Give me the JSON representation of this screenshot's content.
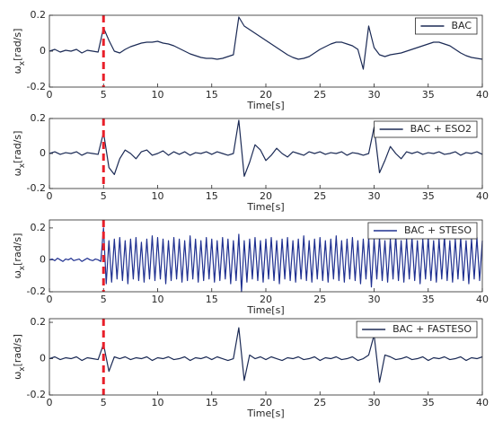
{
  "chart_data": [
    {
      "type": "line",
      "xlabel": "Time[s]",
      "ylabel": {
        "symbol": "ω",
        "sub": "x",
        "unit": "[rad/s]"
      },
      "xlim": [
        0,
        40
      ],
      "xticks": [
        0,
        5,
        10,
        15,
        20,
        25,
        30,
        35,
        40
      ],
      "ylim": [
        -0.2,
        0.2
      ],
      "yticks": [
        -0.2,
        0,
        0.2
      ],
      "grid": false,
      "legend": "upper right",
      "vline": {
        "x": 5,
        "color": "#e8202a"
      },
      "x": [
        0,
        0.5,
        1,
        1.5,
        2,
        2.5,
        3,
        3.5,
        4,
        4.5,
        5,
        5.5,
        6,
        6.5,
        7,
        7.5,
        8,
        8.5,
        9,
        9.5,
        10,
        10.5,
        11,
        11.5,
        12,
        12.5,
        13,
        13.5,
        14,
        14.5,
        15,
        15.5,
        16,
        16.5,
        17,
        17.5,
        18,
        18.5,
        19,
        19.5,
        20,
        20.5,
        21,
        21.5,
        22,
        22.5,
        23,
        23.5,
        24,
        24.5,
        25,
        25.5,
        26,
        26.5,
        27,
        27.5,
        28,
        28.5,
        29,
        29.5,
        30,
        30.5,
        31,
        31.5,
        32,
        32.5,
        33,
        33.5,
        34,
        34.5,
        35,
        35.5,
        36,
        36.5,
        37,
        37.5,
        38,
        38.5,
        39,
        39.5,
        40
      ],
      "series": [
        {
          "name": "BAC",
          "color": "#1b2a55",
          "values": [
            0.0,
            0.01,
            -0.005,
            0.005,
            0.0,
            0.01,
            -0.01,
            0.005,
            0.0,
            -0.005,
            0.13,
            0.06,
            0.0,
            -0.01,
            0.01,
            0.025,
            0.035,
            0.045,
            0.05,
            0.05,
            0.055,
            0.045,
            0.04,
            0.03,
            0.015,
            0.0,
            -0.015,
            -0.025,
            -0.035,
            -0.04,
            -0.04,
            -0.045,
            -0.04,
            -0.03,
            -0.02,
            0.19,
            0.14,
            0.12,
            0.1,
            0.08,
            0.06,
            0.04,
            0.02,
            0.0,
            -0.02,
            -0.035,
            -0.045,
            -0.04,
            -0.03,
            -0.01,
            0.01,
            0.025,
            0.04,
            0.05,
            0.05,
            0.04,
            0.03,
            0.01,
            -0.1,
            0.14,
            0.02,
            -0.02,
            -0.03,
            -0.02,
            -0.015,
            -0.01,
            0.0,
            0.01,
            0.02,
            0.03,
            0.04,
            0.05,
            0.05,
            0.04,
            0.03,
            0.01,
            -0.01,
            -0.025,
            -0.035,
            -0.04,
            -0.045
          ]
        }
      ]
    },
    {
      "type": "line",
      "xlabel": "Time[s]",
      "ylabel": {
        "symbol": "ω",
        "sub": "x",
        "unit": "[rad/s]"
      },
      "xlim": [
        0,
        40
      ],
      "xticks": [
        0,
        5,
        10,
        15,
        20,
        25,
        30,
        35,
        40
      ],
      "ylim": [
        -0.2,
        0.2
      ],
      "yticks": [
        -0.2,
        0,
        0.2
      ],
      "grid": false,
      "legend": "upper right",
      "vline": {
        "x": 5,
        "color": "#e8202a"
      },
      "x": [
        0,
        0.5,
        1,
        1.5,
        2,
        2.5,
        3,
        3.5,
        4,
        4.5,
        5,
        5.5,
        6,
        6.5,
        7,
        7.5,
        8,
        8.5,
        9,
        9.5,
        10,
        10.5,
        11,
        11.5,
        12,
        12.5,
        13,
        13.5,
        14,
        14.5,
        15,
        15.5,
        16,
        16.5,
        17,
        17.5,
        18,
        18.5,
        19,
        19.5,
        20,
        20.5,
        21,
        21.5,
        22,
        22.5,
        23,
        23.5,
        24,
        24.5,
        25,
        25.5,
        26,
        26.5,
        27,
        27.5,
        28,
        28.5,
        29,
        29.5,
        30,
        30.5,
        31,
        31.5,
        32,
        32.5,
        33,
        33.5,
        34,
        34.5,
        35,
        35.5,
        36,
        36.5,
        37,
        37.5,
        38,
        38.5,
        39,
        39.5,
        40
      ],
      "series": [
        {
          "name": "BAC + ESO2",
          "color": "#1b2a55",
          "values": [
            0.0,
            0.01,
            -0.005,
            0.005,
            0.0,
            0.01,
            -0.01,
            0.005,
            0.0,
            -0.005,
            0.12,
            -0.08,
            -0.12,
            -0.03,
            0.02,
            0.0,
            -0.03,
            0.01,
            0.02,
            -0.01,
            0.0,
            0.015,
            -0.01,
            0.01,
            -0.005,
            0.01,
            -0.01,
            0.005,
            0.0,
            0.01,
            -0.005,
            0.01,
            0.0,
            -0.01,
            0.0,
            0.19,
            -0.13,
            -0.05,
            0.05,
            0.02,
            -0.04,
            -0.01,
            0.03,
            0.0,
            -0.02,
            0.01,
            0.0,
            -0.01,
            0.01,
            0.0,
            0.01,
            -0.005,
            0.005,
            0.0,
            0.01,
            -0.01,
            0.005,
            0.0,
            -0.01,
            0.0,
            0.15,
            -0.11,
            -0.04,
            0.04,
            0.0,
            -0.03,
            0.01,
            0.0,
            0.01,
            -0.005,
            0.005,
            0.0,
            0.01,
            -0.005,
            0.0,
            0.01,
            -0.01,
            0.005,
            0.0,
            0.01,
            -0.005
          ]
        }
      ]
    },
    {
      "type": "line",
      "xlabel": "Time[s]",
      "ylabel": {
        "symbol": "ω",
        "sub": "x",
        "unit": "[rad/s]"
      },
      "xlim": [
        0,
        40
      ],
      "xticks": [
        0,
        5,
        10,
        15,
        20,
        25,
        30,
        35,
        40
      ],
      "ylim": [
        -0.2,
        0.25
      ],
      "yticks": [
        -0.2,
        0,
        0.2
      ],
      "grid": false,
      "legend": "upper right",
      "vline": {
        "x": 5,
        "color": "#e8202a"
      },
      "x": [
        0,
        0.25,
        0.5,
        0.75,
        1,
        1.25,
        1.5,
        1.75,
        2,
        2.25,
        2.5,
        2.75,
        3,
        3.25,
        3.5,
        3.75,
        4,
        4.25,
        4.5,
        4.75,
        5,
        5.25,
        5.5,
        5.75,
        6,
        6.25,
        6.5,
        6.75,
        7,
        7.25,
        7.5,
        7.75,
        8,
        8.25,
        8.5,
        8.75,
        9,
        9.25,
        9.5,
        9.75,
        10,
        10.25,
        10.5,
        10.75,
        11,
        11.25,
        11.5,
        11.75,
        12,
        12.25,
        12.5,
        12.75,
        13,
        13.25,
        13.5,
        13.75,
        14,
        14.25,
        14.5,
        14.75,
        15,
        15.25,
        15.5,
        15.75,
        16,
        16.25,
        16.5,
        16.75,
        17,
        17.25,
        17.5,
        17.75,
        18,
        18.25,
        18.5,
        18.75,
        19,
        19.25,
        19.5,
        19.75,
        20,
        20.25,
        20.5,
        20.75,
        21,
        21.25,
        21.5,
        21.75,
        22,
        22.25,
        22.5,
        22.75,
        23,
        23.25,
        23.5,
        23.75,
        24,
        24.25,
        24.5,
        24.75,
        25,
        25.25,
        25.5,
        25.75,
        26,
        26.25,
        26.5,
        26.75,
        27,
        27.25,
        27.5,
        27.75,
        28,
        28.25,
        28.5,
        28.75,
        29,
        29.25,
        29.5,
        29.75,
        30,
        30.25,
        30.5,
        30.75,
        31,
        31.25,
        31.5,
        31.75,
        32,
        32.25,
        32.5,
        32.75,
        33,
        33.25,
        33.5,
        33.75,
        34,
        34.25,
        34.5,
        34.75,
        35,
        35.25,
        35.5,
        35.75,
        36,
        36.25,
        36.5,
        36.75,
        37,
        37.25,
        37.5,
        37.75,
        38,
        38.25,
        38.5,
        38.75,
        39,
        39.25,
        39.5,
        39.75,
        40
      ],
      "series": [
        {
          "name": "BAC + STESO",
          "color": "#1f3090",
          "values": [
            0.0,
            0.005,
            -0.005,
            0.01,
            0.0,
            -0.01,
            0.005,
            0.0,
            0.01,
            -0.005,
            0.0,
            0.005,
            -0.01,
            0.0,
            0.01,
            0.0,
            -0.005,
            0.005,
            0.0,
            -0.01,
            0.2,
            -0.15,
            0.12,
            -0.14,
            0.13,
            -0.12,
            0.14,
            -0.13,
            0.12,
            -0.15,
            0.13,
            -0.12,
            0.14,
            -0.13,
            0.11,
            -0.14,
            0.13,
            -0.12,
            0.15,
            -0.13,
            0.14,
            -0.12,
            0.13,
            -0.15,
            0.12,
            -0.13,
            0.14,
            -0.12,
            0.13,
            -0.14,
            0.12,
            -0.13,
            0.15,
            -0.12,
            0.13,
            -0.14,
            0.12,
            -0.13,
            0.14,
            -0.12,
            0.13,
            -0.14,
            0.12,
            -0.13,
            0.14,
            -0.12,
            0.13,
            -0.15,
            0.12,
            -0.13,
            0.16,
            -0.2,
            0.12,
            -0.14,
            0.13,
            -0.12,
            0.14,
            -0.13,
            0.12,
            -0.14,
            0.13,
            -0.12,
            0.14,
            -0.13,
            0.12,
            -0.15,
            0.13,
            -0.12,
            0.14,
            -0.13,
            0.12,
            -0.14,
            0.13,
            -0.12,
            0.15,
            -0.13,
            0.12,
            -0.14,
            0.13,
            -0.12,
            0.14,
            -0.13,
            0.12,
            -0.14,
            0.13,
            -0.12,
            0.15,
            -0.13,
            0.12,
            -0.14,
            0.13,
            -0.12,
            0.14,
            -0.13,
            0.12,
            -0.15,
            0.13,
            -0.12,
            0.14,
            -0.17,
            0.13,
            -0.12,
            0.14,
            -0.13,
            0.12,
            -0.14,
            0.13,
            -0.12,
            0.15,
            -0.13,
            0.12,
            -0.14,
            0.13,
            -0.12,
            0.14,
            -0.13,
            0.12,
            -0.15,
            0.13,
            -0.12,
            0.14,
            -0.13,
            0.12,
            -0.14,
            0.13,
            -0.12,
            0.15,
            -0.13,
            0.12,
            -0.14,
            0.13,
            -0.12,
            0.14,
            -0.13,
            0.12,
            -0.15,
            0.13,
            -0.12,
            0.14,
            -0.13,
            0.12
          ]
        }
      ]
    },
    {
      "type": "line",
      "xlabel": "Time[s]",
      "ylabel": {
        "symbol": "ω",
        "sub": "x",
        "unit": "[rad/s]"
      },
      "xlim": [
        0,
        40
      ],
      "xticks": [
        0,
        5,
        10,
        15,
        20,
        25,
        30,
        35,
        40
      ],
      "ylim": [
        -0.2,
        0.22
      ],
      "yticks": [
        -0.2,
        0,
        0.2
      ],
      "grid": false,
      "legend": "upper right",
      "vline": {
        "x": 5,
        "color": "#e8202a"
      },
      "x": [
        0,
        0.5,
        1,
        1.5,
        2,
        2.5,
        3,
        3.5,
        4,
        4.5,
        5,
        5.5,
        6,
        6.5,
        7,
        7.5,
        8,
        8.5,
        9,
        9.5,
        10,
        10.5,
        11,
        11.5,
        12,
        12.5,
        13,
        13.5,
        14,
        14.5,
        15,
        15.5,
        16,
        16.5,
        17,
        17.5,
        18,
        18.5,
        19,
        19.5,
        20,
        20.5,
        21,
        21.5,
        22,
        22.5,
        23,
        23.5,
        24,
        24.5,
        25,
        25.5,
        26,
        26.5,
        27,
        27.5,
        28,
        28.5,
        29,
        29.5,
        30,
        30.5,
        31,
        31.5,
        32,
        32.5,
        33,
        33.5,
        34,
        34.5,
        35,
        35.5,
        36,
        36.5,
        37,
        37.5,
        38,
        38.5,
        39,
        39.5,
        40
      ],
      "series": [
        {
          "name": "BAC + FASTESO",
          "color": "#1b2a55",
          "values": [
            0.0,
            0.01,
            -0.005,
            0.005,
            0.0,
            0.01,
            -0.01,
            0.005,
            0.0,
            -0.005,
            0.08,
            -0.07,
            0.01,
            0.0,
            0.01,
            -0.005,
            0.005,
            0.0,
            0.01,
            -0.01,
            0.005,
            0.0,
            0.01,
            -0.005,
            0.0,
            0.01,
            -0.01,
            0.005,
            0.0,
            0.01,
            -0.005,
            0.01,
            0.0,
            -0.01,
            0.0,
            0.17,
            -0.12,
            0.02,
            0.0,
            0.01,
            -0.005,
            0.01,
            0.0,
            -0.01,
            0.005,
            0.0,
            0.01,
            -0.005,
            0.0,
            0.01,
            -0.01,
            0.005,
            0.0,
            0.01,
            -0.005,
            0.0,
            0.01,
            -0.01,
            0.0,
            0.02,
            0.13,
            -0.13,
            0.02,
            0.01,
            -0.005,
            0.0,
            0.01,
            -0.005,
            0.0,
            0.01,
            -0.01,
            0.005,
            0.0,
            0.01,
            -0.005,
            0.0,
            0.01,
            -0.01,
            0.005,
            0.0,
            0.01
          ]
        }
      ]
    }
  ]
}
